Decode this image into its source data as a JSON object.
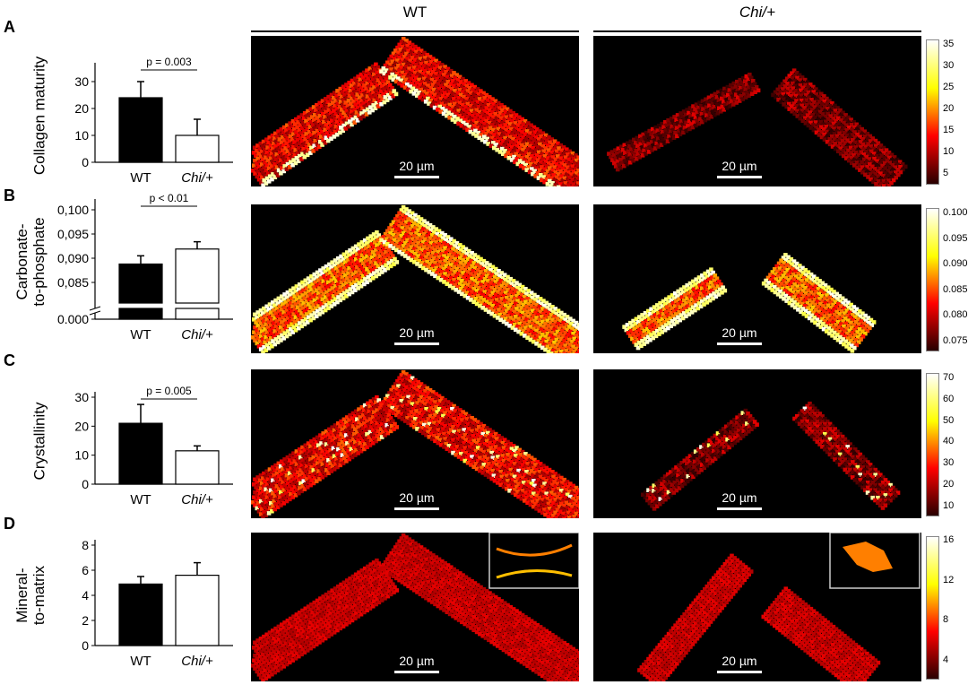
{
  "columns": {
    "wt": "WT",
    "chi": "Chi/+"
  },
  "scale_bar": "20 µm",
  "panels": [
    {
      "letter": "A",
      "ylabel_lines": [
        "Collagen maturity"
      ],
      "chart_data": {
        "type": "bar",
        "categories": [
          "WT",
          "Chi/+"
        ],
        "values": [
          24,
          10
        ],
        "errors": [
          6,
          6
        ],
        "ylim": [
          0,
          35
        ],
        "yticks": [
          "0",
          "10",
          "20",
          "30"
        ],
        "pvalue": "p = 0.003"
      },
      "colorbar_ticks": [
        "35",
        "30",
        "25",
        "20",
        "15",
        "10",
        "5"
      ]
    },
    {
      "letter": "B",
      "ylabel_lines": [
        "Carbonate-",
        "to-phosphate"
      ],
      "chart_data": {
        "type": "bar",
        "categories": [
          "WT",
          "Chi/+"
        ],
        "values": [
          0.0888,
          0.0919
        ],
        "errors": [
          0.0017,
          0.0015
        ],
        "ylim": [
          0.0,
          0.1
        ],
        "axis_break": [
          0.0,
          0.08
        ],
        "yticks": [
          "0.000",
          "0,085",
          "0,090",
          "0,095",
          "0,100"
        ],
        "pvalue": "p < 0.01"
      },
      "colorbar_ticks": [
        "0.100",
        "0.095",
        "0.090",
        "0.085",
        "0.080",
        "0.075"
      ]
    },
    {
      "letter": "C",
      "ylabel_lines": [
        "Crystallinity"
      ],
      "chart_data": {
        "type": "bar",
        "categories": [
          "WT",
          "Chi/+"
        ],
        "values": [
          21,
          11.5
        ],
        "errors": [
          6.5,
          1.7
        ],
        "ylim": [
          0,
          30
        ],
        "yticks": [
          "0",
          "10",
          "20",
          "30"
        ],
        "pvalue": "p = 0.005"
      },
      "colorbar_ticks": [
        "70",
        "60",
        "50",
        "40",
        "30",
        "20",
        "10"
      ]
    },
    {
      "letter": "D",
      "ylabel_lines": [
        "Mineral-",
        "to-matrix"
      ],
      "chart_data": {
        "type": "bar",
        "categories": [
          "WT",
          "Chi/+"
        ],
        "values": [
          4.9,
          5.6
        ],
        "errors": [
          0.6,
          1.0
        ],
        "ylim": [
          0,
          8
        ],
        "yticks": [
          "0",
          "2",
          "4",
          "6",
          "8"
        ],
        "pvalue": ""
      },
      "colorbar_ticks": [
        "16",
        "12",
        "8",
        "4"
      ]
    }
  ]
}
